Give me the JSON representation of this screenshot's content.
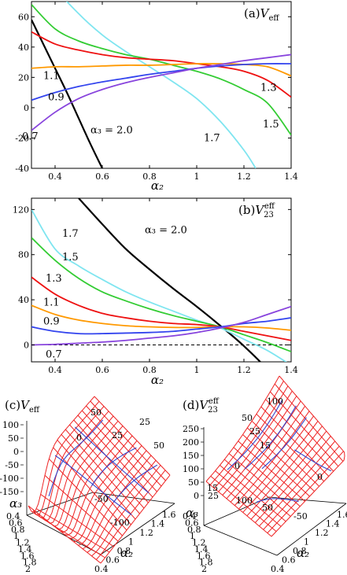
{
  "chart_data": [
    {
      "type": "line",
      "panel": "(a)",
      "title": "(a)V_eff",
      "title_prefix": "(a)",
      "title_symbol": "V",
      "title_sub": "eff",
      "xlabel": "α₂",
      "xlim": [
        0.3,
        1.4
      ],
      "ylim": [
        -40,
        70
      ],
      "xticks": [
        "0.4",
        "0.6",
        "0.8",
        "1",
        "1.2",
        "1.4"
      ],
      "yticks": [
        "60",
        "40",
        "20",
        "0",
        "-20",
        "-40"
      ],
      "series": [
        {
          "name": "α₃ = 2.0",
          "color": "#000000",
          "x": [
            0.3,
            0.35,
            0.4,
            0.45,
            0.5,
            0.55,
            0.6
          ],
          "y": [
            58,
            42,
            26,
            10,
            -7,
            -24,
            -40
          ]
        },
        {
          "name": "1.7",
          "color": "#7fe5f0",
          "x": [
            0.3,
            0.4,
            0.5,
            0.6,
            0.7,
            0.8,
            0.9,
            1.0,
            1.1,
            1.2,
            1.25
          ],
          "y": [
            110,
            80,
            62,
            48,
            37,
            27,
            17,
            6,
            -9,
            -28,
            -40
          ]
        },
        {
          "name": "1.5",
          "color": "#33cc33",
          "x": [
            0.3,
            0.4,
            0.5,
            0.6,
            0.7,
            0.8,
            0.9,
            1.0,
            1.1,
            1.2,
            1.3,
            1.4
          ],
          "y": [
            68,
            52,
            44,
            39,
            35,
            32,
            28,
            24,
            19,
            12,
            3,
            -18
          ]
        },
        {
          "name": "1.3",
          "color": "#ee1111",
          "x": [
            0.3,
            0.4,
            0.5,
            0.6,
            0.7,
            0.8,
            0.9,
            1.0,
            1.1,
            1.2,
            1.3,
            1.4
          ],
          "y": [
            50,
            42,
            38,
            35,
            33,
            32,
            31,
            29,
            27,
            24,
            18,
            7
          ]
        },
        {
          "name": "1.1",
          "color": "#ff9900",
          "x": [
            0.3,
            0.4,
            0.5,
            0.6,
            0.7,
            0.8,
            0.9,
            1.0,
            1.1,
            1.2,
            1.3,
            1.4
          ],
          "y": [
            26,
            27,
            27,
            27.5,
            28,
            28,
            28.5,
            29,
            29,
            28.5,
            27,
            21
          ]
        },
        {
          "name": "0.9",
          "color": "#3344ee",
          "x": [
            0.3,
            0.4,
            0.5,
            0.6,
            0.7,
            0.8,
            0.9,
            1.0,
            1.1,
            1.2,
            1.3,
            1.4
          ],
          "y": [
            5,
            10,
            14,
            17,
            19.5,
            22,
            24,
            26,
            27.5,
            28.5,
            29,
            29
          ]
        },
        {
          "name": "0.7",
          "color": "#8844dd",
          "x": [
            0.3,
            0.4,
            0.5,
            0.6,
            0.7,
            0.8,
            0.9,
            1.0,
            1.1,
            1.2,
            1.3,
            1.4
          ],
          "y": [
            -15,
            -3,
            6,
            12,
            16.5,
            20,
            23,
            26,
            28.5,
            31,
            33,
            35
          ]
        }
      ],
      "labels": [
        {
          "text": "α₃ = 2.0",
          "x": 0.55,
          "y": -17
        },
        {
          "text": "1.7",
          "x": 1.03,
          "y": -22
        },
        {
          "text": "1.5",
          "x": 1.28,
          "y": -13
        },
        {
          "text": "1.3",
          "x": 1.27,
          "y": 11
        },
        {
          "text": "1.1",
          "x": 0.35,
          "y": 19
        },
        {
          "text": "0.9",
          "x": 0.37,
          "y": 5
        },
        {
          "text": "0.7",
          "x": 0.26,
          "y": -21
        }
      ]
    },
    {
      "type": "line",
      "panel": "(b)",
      "title": "(b)V_23^eff",
      "title_prefix": "(b)",
      "title_symbol": "V",
      "title_sub": "23",
      "title_sup": "eff",
      "xlabel": "α₂",
      "xlim": [
        0.3,
        1.4
      ],
      "ylim": [
        -15,
        130
      ],
      "xticks": [
        "0.4",
        "0.6",
        "0.8",
        "1",
        "1.2",
        "1.4"
      ],
      "yticks": [
        "120",
        "80",
        "40",
        "0"
      ],
      "series": [
        {
          "name": "α₃ = 2.0",
          "color": "#000000",
          "x": [
            0.5,
            0.6,
            0.7,
            0.8,
            0.9,
            1.0,
            1.1,
            1.2,
            1.3,
            1.36
          ],
          "y": [
            130,
            107,
            85,
            67,
            50,
            34,
            17,
            -1,
            -22,
            -40
          ]
        },
        {
          "name": "1.7",
          "color": "#7fe5f0",
          "x": [
            0.3,
            0.4,
            0.5,
            0.6,
            0.7,
            0.8,
            0.9,
            1.0,
            1.1,
            1.2,
            1.3,
            1.4
          ],
          "y": [
            120,
            85,
            70,
            58,
            47,
            38,
            30,
            22,
            15,
            5,
            -5,
            -18
          ]
        },
        {
          "name": "1.5",
          "color": "#33cc33",
          "x": [
            0.3,
            0.4,
            0.5,
            0.6,
            0.7,
            0.8,
            0.9,
            1.0,
            1.1,
            1.2,
            1.3,
            1.4
          ],
          "y": [
            95,
            75,
            59,
            47,
            39,
            32,
            26,
            21,
            16,
            9,
            2,
            -6
          ]
        },
        {
          "name": "1.3",
          "color": "#ee1111",
          "x": [
            0.3,
            0.4,
            0.5,
            0.6,
            0.7,
            0.8,
            0.9,
            1.0,
            1.1,
            1.2,
            1.3,
            1.4
          ],
          "y": [
            60,
            45,
            35,
            28,
            24,
            21,
            19,
            18,
            16,
            12,
            8,
            4
          ]
        },
        {
          "name": "1.1",
          "color": "#ff9900",
          "x": [
            0.3,
            0.4,
            0.5,
            0.6,
            0.7,
            0.8,
            0.9,
            1.0,
            1.1,
            1.2,
            1.3,
            1.4
          ],
          "y": [
            35,
            27,
            22,
            19,
            17,
            16,
            15.5,
            15.5,
            16,
            16,
            15,
            13
          ]
        },
        {
          "name": "0.9",
          "color": "#3344ee",
          "x": [
            0.3,
            0.4,
            0.5,
            0.6,
            0.7,
            0.8,
            0.9,
            1.0,
            1.1,
            1.2,
            1.3,
            1.4
          ],
          "y": [
            16,
            12,
            10,
            10,
            10.5,
            11,
            12,
            14,
            16,
            19,
            21,
            24
          ]
        },
        {
          "name": "0.7",
          "color": "#8844dd",
          "x": [
            0.3,
            0.4,
            0.5,
            0.6,
            0.7,
            0.8,
            0.9,
            1.0,
            1.1,
            1.2,
            1.3,
            1.4
          ],
          "y": [
            0,
            0.5,
            1.5,
            2.5,
            4,
            6,
            8,
            11,
            15,
            20,
            27,
            34
          ]
        }
      ],
      "reference_line": {
        "y": 0,
        "style": "dashed"
      },
      "labels": [
        {
          "text": "α₃ = 2.0",
          "x": 0.78,
          "y": 99
        },
        {
          "text": "1.7",
          "x": 0.43,
          "y": 96
        },
        {
          "text": "1.5",
          "x": 0.43,
          "y": 75
        },
        {
          "text": "1.3",
          "x": 0.36,
          "y": 56
        },
        {
          "text": "1.1",
          "x": 0.35,
          "y": 35
        },
        {
          "text": "0.9",
          "x": 0.35,
          "y": 18
        },
        {
          "text": "0.7",
          "x": 0.36,
          "y": -11
        }
      ]
    },
    {
      "type": "surface",
      "panel": "(c)",
      "title": "(c)V_eff",
      "title_prefix": "(c)",
      "title_symbol": "V",
      "title_sub": "eff",
      "xlabel": "α₂",
      "ylabel": "α₃",
      "zticks": [
        "100",
        "50",
        "0",
        "-50",
        "-100",
        "-150"
      ],
      "x_ticks": [
        "0.4",
        "0.6",
        "0.8",
        "1",
        "1.2",
        "1.4",
        "1.6"
      ],
      "y_ticks": [
        "0.4",
        "0.6",
        "0.8",
        "1",
        "1.2",
        "1.4",
        "1.6",
        "1.8",
        "2"
      ],
      "contour_labels": [
        "50",
        "25",
        "0",
        "25",
        "50",
        "-50",
        "-100"
      ]
    },
    {
      "type": "surface",
      "panel": "(d)",
      "title": "(d)V_23^eff",
      "title_prefix": "(d)",
      "title_symbol": "V",
      "title_sub": "23",
      "title_sup": "eff",
      "xlabel": "α₂",
      "ylabel": "α₃",
      "zticks": [
        "250",
        "200",
        "150",
        "100",
        "50",
        "0"
      ],
      "x_ticks": [
        "0.4",
        "0.6",
        "0.8",
        "1",
        "1.2",
        "1.4",
        "1.6"
      ],
      "y_ticks": [
        "0.4",
        "0.6",
        "0.8",
        "1",
        "1.2",
        "1.4",
        "1.6",
        "1.8",
        "2"
      ],
      "contour_labels": [
        "100",
        "50",
        "25",
        "15",
        "0",
        "0",
        "15",
        "25",
        "100",
        "50",
        "-50"
      ]
    }
  ]
}
